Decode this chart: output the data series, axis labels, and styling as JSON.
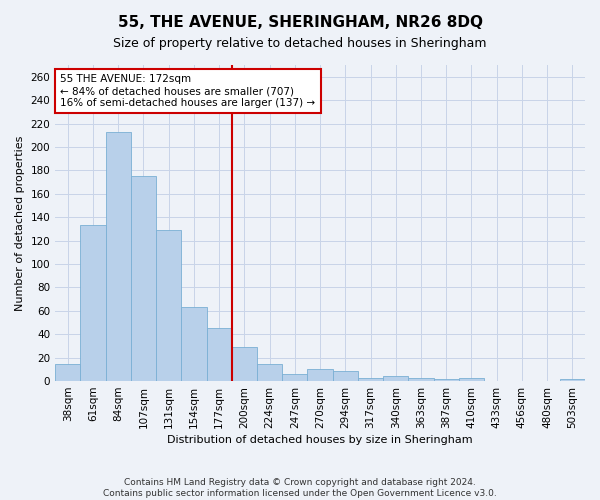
{
  "title": "55, THE AVENUE, SHERINGHAM, NR26 8DQ",
  "subtitle": "Size of property relative to detached houses in Sheringham",
  "xlabel": "Distribution of detached houses by size in Sheringham",
  "ylabel": "Number of detached properties",
  "bar_labels": [
    "38sqm",
    "61sqm",
    "84sqm",
    "107sqm",
    "131sqm",
    "154sqm",
    "177sqm",
    "200sqm",
    "224sqm",
    "247sqm",
    "270sqm",
    "294sqm",
    "317sqm",
    "340sqm",
    "363sqm",
    "387sqm",
    "410sqm",
    "433sqm",
    "456sqm",
    "480sqm",
    "503sqm"
  ],
  "bar_values": [
    15,
    133,
    213,
    175,
    129,
    63,
    45,
    29,
    15,
    6,
    10,
    9,
    3,
    4,
    3,
    2,
    3,
    0,
    0,
    0,
    2
  ],
  "bar_color": "#b8d0ea",
  "bar_edge_color": "#7aafd4",
  "vline_color": "#cc0000",
  "vline_x": 6.5,
  "annotation_text": "55 THE AVENUE: 172sqm\n← 84% of detached houses are smaller (707)\n16% of semi-detached houses are larger (137) →",
  "annotation_box_color": "#ffffff",
  "annotation_box_edge": "#cc0000",
  "ylim": [
    0,
    270
  ],
  "yticks": [
    0,
    20,
    40,
    60,
    80,
    100,
    120,
    140,
    160,
    180,
    200,
    220,
    240,
    260
  ],
  "footer_line1": "Contains HM Land Registry data © Crown copyright and database right 2024.",
  "footer_line2": "Contains public sector information licensed under the Open Government Licence v3.0.",
  "background_color": "#eef2f8",
  "plot_background": "#eef2f8",
  "grid_color": "#c8d4e8",
  "title_fontsize": 11,
  "subtitle_fontsize": 9,
  "axis_label_fontsize": 8,
  "tick_fontsize": 7.5,
  "annotation_fontsize": 7.5,
  "footer_fontsize": 6.5
}
